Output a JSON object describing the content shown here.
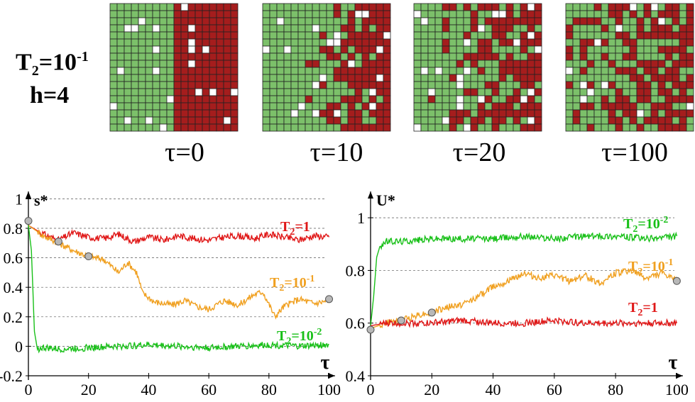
{
  "parameters": {
    "t2_base": "T",
    "t2_sub": "2",
    "t2_value": "=10",
    "t2_exp": "-1",
    "h_label": "h=4"
  },
  "snapshots": [
    {
      "label": "τ=0"
    },
    {
      "label": "τ=10"
    },
    {
      "label": "τ=20"
    },
    {
      "label": "τ=100"
    }
  ],
  "colors": {
    "green_cell": "#7cc06a",
    "red_cell": "#a51d1d",
    "white_cell": "#ffffff",
    "grid_line": "#222222",
    "series_red": "#e01818",
    "series_orange": "#f0a020",
    "series_green": "#18c018",
    "marker": "#b8b8b8"
  },
  "chart_data": [
    {
      "type": "line",
      "ylabel": "s*",
      "xlabel": "τ",
      "xlim": [
        0,
        102
      ],
      "ylim": [
        -0.2,
        1.05
      ],
      "xticks": [
        "0",
        "20",
        "40",
        "60",
        "80",
        "100"
      ],
      "yticks": [
        "-0.2",
        "0",
        "0.2",
        "0.4",
        "0.6",
        "0.8",
        "1"
      ],
      "grid": "horizontal dashed",
      "series": [
        {
          "name": "T2=1",
          "name_base": "T",
          "name_sub": "2",
          "name_rest": "=1",
          "name_exp": "",
          "color": "red",
          "x": [
            0,
            5,
            10,
            15,
            20,
            25,
            30,
            35,
            40,
            45,
            50,
            55,
            60,
            65,
            70,
            75,
            80,
            85,
            90,
            95,
            100
          ],
          "y": [
            0.82,
            0.76,
            0.72,
            0.77,
            0.74,
            0.73,
            0.76,
            0.71,
            0.74,
            0.72,
            0.75,
            0.73,
            0.72,
            0.74,
            0.75,
            0.73,
            0.76,
            0.74,
            0.72,
            0.75,
            0.74
          ]
        },
        {
          "name": "T2=10-1",
          "name_base": "T",
          "name_sub": "2",
          "name_rest": "=10",
          "name_exp": "-1",
          "color": "orange",
          "x": [
            0,
            5,
            10,
            15,
            20,
            25,
            30,
            33,
            36,
            38,
            42,
            48,
            52,
            56,
            60,
            65,
            70,
            75,
            78,
            82,
            85,
            90,
            95,
            100
          ],
          "y": [
            0.82,
            0.75,
            0.7,
            0.65,
            0.61,
            0.59,
            0.5,
            0.57,
            0.5,
            0.36,
            0.3,
            0.28,
            0.31,
            0.27,
            0.25,
            0.31,
            0.28,
            0.35,
            0.37,
            0.2,
            0.27,
            0.32,
            0.29,
            0.31
          ]
        },
        {
          "name": "T2=10-2",
          "name_base": "T",
          "name_sub": "2",
          "name_rest": "=10",
          "name_exp": "-2",
          "color": "green",
          "x": [
            0,
            1,
            2,
            3,
            5,
            10,
            20,
            30,
            40,
            50,
            60,
            70,
            80,
            90,
            100
          ],
          "y": [
            0.82,
            0.65,
            0.1,
            -0.02,
            -0.01,
            -0.02,
            -0.01,
            0.0,
            0.01,
            0.0,
            -0.01,
            0.0,
            0.01,
            0.0,
            0.01
          ]
        }
      ],
      "markers": [
        {
          "x": 0,
          "y": 0.85
        },
        {
          "x": 10,
          "y": 0.71
        },
        {
          "x": 20,
          "y": 0.61
        },
        {
          "x": 100,
          "y": 0.32
        }
      ]
    },
    {
      "type": "line",
      "ylabel": "U*",
      "xlabel": "τ",
      "xlim": [
        0,
        102
      ],
      "ylim": [
        0.4,
        1.1
      ],
      "xticks": [
        "0",
        "20",
        "40",
        "60",
        "80",
        "100"
      ],
      "yticks": [
        "0.4",
        "0.6",
        "0.8",
        "1"
      ],
      "grid": "horizontal dashed",
      "series": [
        {
          "name": "T2=10-2",
          "name_base": "T",
          "name_sub": "2",
          "name_rest": "=10",
          "name_exp": "-2",
          "color": "green",
          "x": [
            0,
            1,
            2,
            3,
            5,
            10,
            20,
            30,
            40,
            50,
            60,
            70,
            80,
            90,
            100
          ],
          "y": [
            0.59,
            0.7,
            0.85,
            0.89,
            0.91,
            0.91,
            0.92,
            0.92,
            0.92,
            0.93,
            0.92,
            0.93,
            0.93,
            0.92,
            0.93
          ]
        },
        {
          "name": "T2=10-1",
          "name_base": "T",
          "name_sub": "2",
          "name_rest": "=10",
          "name_exp": "-1",
          "color": "orange",
          "x": [
            0,
            5,
            10,
            15,
            20,
            25,
            30,
            35,
            40,
            45,
            50,
            55,
            60,
            65,
            70,
            75,
            80,
            85,
            90,
            95,
            100
          ],
          "y": [
            0.58,
            0.6,
            0.61,
            0.63,
            0.64,
            0.66,
            0.67,
            0.7,
            0.74,
            0.76,
            0.79,
            0.77,
            0.78,
            0.76,
            0.78,
            0.75,
            0.79,
            0.8,
            0.77,
            0.79,
            0.76
          ]
        },
        {
          "name": "T2=1",
          "name_base": "T",
          "name_sub": "2",
          "name_rest": "=1",
          "name_exp": "",
          "color": "red",
          "x": [
            0,
            5,
            10,
            20,
            30,
            40,
            50,
            60,
            70,
            80,
            90,
            100
          ],
          "y": [
            0.59,
            0.6,
            0.6,
            0.6,
            0.61,
            0.6,
            0.6,
            0.61,
            0.6,
            0.6,
            0.6,
            0.6
          ]
        }
      ],
      "markers": [
        {
          "x": 0,
          "y": 0.575
        },
        {
          "x": 10,
          "y": 0.61
        },
        {
          "x": 20,
          "y": 0.64
        },
        {
          "x": 100,
          "y": 0.76
        }
      ]
    }
  ]
}
